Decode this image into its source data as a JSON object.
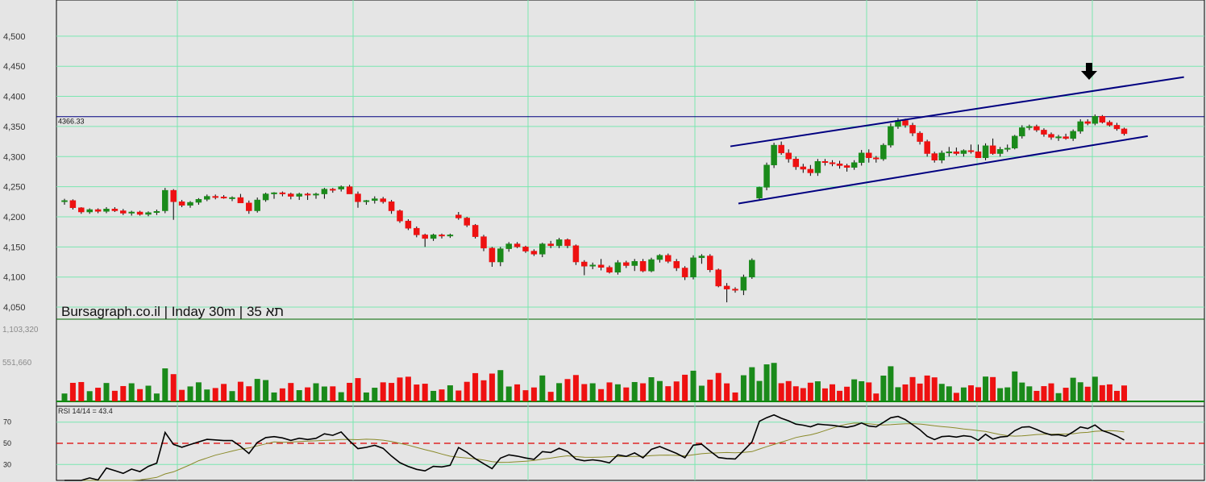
{
  "chart_title": "Bursagraph.co.il | Inday 30m | תא 35",
  "colors": {
    "background": "#e5e5e5",
    "grid": "#7ae6b0",
    "up": "#1a8a1a",
    "down": "#ee1111",
    "channel": "#000080",
    "rsi": "#000000",
    "rsi_ma": "#8a8a2a",
    "rsi_mid": "#dd0000"
  },
  "chart_data": [
    {
      "type": "candlestick",
      "title": "Bursagraph.co.il | Inday 30m | תא 35",
      "y_ticks": [
        "4,500",
        "4,450",
        "4,400",
        "4,350",
        "4,300",
        "4,250",
        "4,200",
        "4,150",
        "4,100",
        "4,050"
      ],
      "ylim": [
        4030,
        4560
      ],
      "grid": true,
      "reference_level": 4366.33,
      "reference_label": "4366.33",
      "annotation": "down-arrow-icon",
      "channel": {
        "upper": [
          [
            0,
            4317
          ],
          [
            53,
            4432
          ]
        ],
        "lower": [
          [
            0,
            4222
          ],
          [
            55,
            4334
          ]
        ]
      },
      "candles": [
        [
          4225,
          4230,
          4220,
          4227
        ],
        [
          4227,
          4229,
          4212,
          4215
        ],
        [
          4215,
          4216,
          4205,
          4208
        ],
        [
          4208,
          4214,
          4205,
          4212
        ],
        [
          4212,
          4214,
          4206,
          4209
        ],
        [
          4209,
          4216,
          4206,
          4213
        ],
        [
          4213,
          4216,
          4208,
          4210
        ],
        [
          4210,
          4213,
          4203,
          4206
        ],
        [
          4206,
          4210,
          4202,
          4208
        ],
        [
          4208,
          4210,
          4202,
          4204
        ],
        [
          4204,
          4209,
          4201,
          4207
        ],
        [
          4207,
          4212,
          4203,
          4209
        ],
        [
          4210,
          4248,
          4206,
          4244
        ],
        [
          4244,
          4246,
          4195,
          4225
        ],
        [
          4225,
          4228,
          4216,
          4219
        ],
        [
          4219,
          4226,
          4215,
          4224
        ],
        [
          4224,
          4231,
          4220,
          4229
        ],
        [
          4229,
          4237,
          4226,
          4234
        ],
        [
          4234,
          4237,
          4229,
          4233
        ],
        [
          4233,
          4236,
          4230,
          4232
        ],
        [
          4231,
          4234,
          4226,
          4232
        ],
        [
          4232,
          4238,
          4226,
          4223
        ],
        [
          4223,
          4227,
          4205,
          4210
        ],
        [
          4210,
          4232,
          4207,
          4228
        ],
        [
          4228,
          4240,
          4225,
          4238
        ],
        [
          4238,
          4241,
          4230,
          4240
        ],
        [
          4240,
          4242,
          4234,
          4238
        ],
        [
          4238,
          4240,
          4229,
          4234
        ],
        [
          4234,
          4240,
          4228,
          4238
        ],
        [
          4238,
          4240,
          4228,
          4236
        ],
        [
          4236,
          4240,
          4230,
          4238
        ],
        [
          4238,
          4248,
          4230,
          4246
        ],
        [
          4246,
          4248,
          4240,
          4244
        ],
        [
          4246,
          4252,
          4242,
          4250
        ],
        [
          4250,
          4253,
          4238,
          4238
        ],
        [
          4238,
          4242,
          4215,
          4225
        ],
        [
          4225,
          4228,
          4220,
          4227
        ],
        [
          4227,
          4234,
          4222,
          4230
        ],
        [
          4230,
          4233,
          4222,
          4225
        ],
        [
          4225,
          4228,
          4205,
          4210
        ],
        [
          4210,
          4212,
          4190,
          4193
        ],
        [
          4193,
          4196,
          4178,
          4181
        ],
        [
          4181,
          4184,
          4166,
          4170
        ],
        [
          4170,
          4172,
          4150,
          4164
        ],
        [
          4164,
          4172,
          4160,
          4170
        ],
        [
          4170,
          4172,
          4164,
          4168
        ],
        [
          4168,
          4172,
          4165,
          4170
        ],
        [
          4203,
          4208,
          4195,
          4198
        ],
        [
          4198,
          4200,
          4183,
          4186
        ],
        [
          4186,
          4188,
          4164,
          4167
        ],
        [
          4167,
          4170,
          4143,
          4148
        ],
        [
          4148,
          4150,
          4117,
          4125
        ],
        [
          4125,
          4150,
          4118,
          4147
        ],
        [
          4147,
          4158,
          4142,
          4155
        ],
        [
          4155,
          4158,
          4148,
          4150
        ],
        [
          4150,
          4152,
          4140,
          4143
        ],
        [
          4143,
          4146,
          4135,
          4138
        ],
        [
          4138,
          4157,
          4133,
          4155
        ],
        [
          4155,
          4160,
          4148,
          4152
        ],
        [
          4152,
          4165,
          4148,
          4162
        ],
        [
          4162,
          4164,
          4148,
          4152
        ],
        [
          4152,
          4154,
          4120,
          4125
        ],
        [
          4125,
          4128,
          4103,
          4118
        ],
        [
          4118,
          4124,
          4113,
          4120
        ],
        [
          4120,
          4130,
          4111,
          4116
        ],
        [
          4116,
          4119,
          4106,
          4108
        ],
        [
          4108,
          4128,
          4104,
          4124
        ],
        [
          4124,
          4127,
          4115,
          4119
        ],
        [
          4119,
          4130,
          4110,
          4126
        ],
        [
          4126,
          4130,
          4108,
          4110
        ],
        [
          4110,
          4132,
          4108,
          4129
        ],
        [
          4129,
          4138,
          4124,
          4136
        ],
        [
          4136,
          4139,
          4123,
          4126
        ],
        [
          4126,
          4130,
          4110,
          4115
        ],
        [
          4115,
          4118,
          4095,
          4100
        ],
        [
          4100,
          4136,
          4096,
          4132
        ],
        [
          4132,
          4138,
          4122,
          4135
        ],
        [
          4135,
          4138,
          4108,
          4112
        ],
        [
          4112,
          4114,
          4083,
          4085
        ],
        [
          4085,
          4090,
          4058,
          4080
        ],
        [
          4080,
          4083,
          4074,
          4078
        ],
        [
          4078,
          4104,
          4070,
          4100
        ],
        [
          4100,
          4131,
          4097,
          4128
        ]
      ],
      "candles_right": [
        [
          4231,
          4250,
          4228,
          4249
        ],
        [
          4249,
          4290,
          4244,
          4286
        ],
        [
          4286,
          4323,
          4281,
          4319
        ],
        [
          4319,
          4325,
          4303,
          4306
        ],
        [
          4306,
          4312,
          4290,
          4296
        ],
        [
          4296,
          4300,
          4278,
          4283
        ],
        [
          4283,
          4288,
          4273,
          4279
        ],
        [
          4279,
          4286,
          4268,
          4273
        ],
        [
          4273,
          4296,
          4268,
          4292
        ],
        [
          4292,
          4296,
          4285,
          4290
        ],
        [
          4290,
          4294,
          4284,
          4288
        ],
        [
          4288,
          4293,
          4280,
          4285
        ],
        [
          4285,
          4288,
          4275,
          4282
        ],
        [
          4282,
          4294,
          4278,
          4290
        ],
        [
          4290,
          4311,
          4285,
          4306
        ],
        [
          4306,
          4312,
          4290,
          4298
        ],
        [
          4298,
          4301,
          4290,
          4296
        ],
        [
          4296,
          4322,
          4293,
          4319
        ],
        [
          4319,
          4355,
          4315,
          4350
        ],
        [
          4350,
          4364,
          4346,
          4360
        ],
        [
          4360,
          4363,
          4348,
          4352
        ],
        [
          4352,
          4356,
          4334,
          4339
        ],
        [
          4339,
          4342,
          4320,
          4325
        ],
        [
          4325,
          4328,
          4300,
          4305
        ],
        [
          4305,
          4308,
          4290,
          4294
        ],
        [
          4294,
          4310,
          4289,
          4306
        ],
        [
          4306,
          4316,
          4300,
          4308
        ],
        [
          4308,
          4315,
          4302,
          4305
        ],
        [
          4305,
          4312,
          4300,
          4310
        ],
        [
          4310,
          4320,
          4305,
          4308
        ],
        [
          4308,
          4320,
          4302,
          4298
        ],
        [
          4298,
          4322,
          4294,
          4318
        ],
        [
          4318,
          4330,
          4303,
          4305
        ],
        [
          4305,
          4316,
          4300,
          4312
        ],
        [
          4312,
          4320,
          4308,
          4314
        ],
        [
          4314,
          4336,
          4312,
          4334
        ],
        [
          4334,
          4352,
          4330,
          4348
        ],
        [
          4348,
          4353,
          4344,
          4350
        ],
        [
          4350,
          4353,
          4341,
          4344
        ],
        [
          4344,
          4347,
          4333,
          4337
        ],
        [
          4337,
          4340,
          4328,
          4332
        ],
        [
          4332,
          4336,
          4326,
          4333
        ],
        [
          4333,
          4338,
          4328,
          4330
        ],
        [
          4330,
          4345,
          4326,
          4342
        ],
        [
          4342,
          4362,
          4338,
          4358
        ],
        [
          4358,
          4362,
          4352,
          4355
        ],
        [
          4355,
          4370,
          4352,
          4367
        ],
        [
          4367,
          4369,
          4355,
          4357
        ],
        [
          4357,
          4360,
          4350,
          4352
        ],
        [
          4352,
          4356,
          4343,
          4346
        ],
        [
          4346,
          4348,
          4335,
          4338
        ]
      ]
    },
    {
      "type": "bar",
      "title": "Volume",
      "y_ticks": [
        "1,103,320",
        "551,660"
      ],
      "ylim": [
        0,
        1103320
      ]
    },
    {
      "type": "line",
      "title": "RSI 14/14 = 43.4",
      "y_ticks": [
        "70",
        "50",
        "30"
      ],
      "ylim": [
        15,
        85
      ],
      "midline": 50
    }
  ]
}
